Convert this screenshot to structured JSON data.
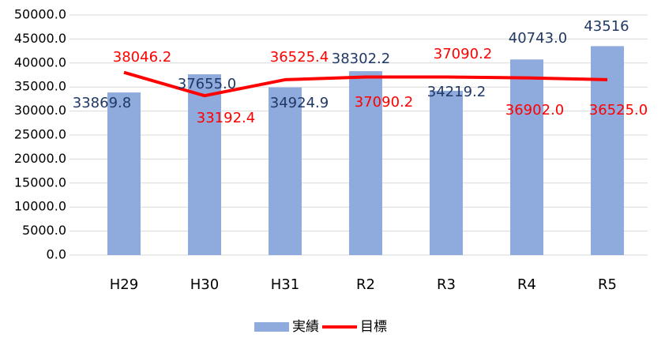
{
  "chart_data": {
    "type": "combo",
    "categories": [
      "H29",
      "H30",
      "H31",
      "R2",
      "R3",
      "R4",
      "R5"
    ],
    "series": [
      {
        "name": "実績",
        "type": "bar",
        "color": "#8faadc",
        "label_color": "#203864",
        "values": [
          33869.8,
          37655.0,
          34924.9,
          38302.2,
          34219.2,
          40743.0,
          43516
        ],
        "value_labels": [
          "33869.8",
          "37655.0",
          "34924.9",
          "38302.2",
          "34219.2",
          "40743.0",
          "43516"
        ]
      },
      {
        "name": "目標",
        "type": "line",
        "color": "#ff0000",
        "label_color": "#ff0000",
        "values": [
          38046.2,
          33192.4,
          36525.4,
          37090.2,
          37090.2,
          36902.0,
          36525.0
        ],
        "value_labels": [
          "38046.2",
          "33192.4",
          "36525.4",
          "37090.2",
          "37090.2",
          "36902.0",
          "36525.0"
        ]
      }
    ],
    "ylim": [
      0,
      50000
    ],
    "yticks": [
      {
        "value": 0,
        "label": "0.0"
      },
      {
        "value": 5000,
        "label": "5000.0"
      },
      {
        "value": 10000,
        "label": "10000.0"
      },
      {
        "value": 15000,
        "label": "15000.0"
      },
      {
        "value": 20000,
        "label": "20000.0"
      },
      {
        "value": 25000,
        "label": "25000.0"
      },
      {
        "value": 30000,
        "label": "30000.0"
      },
      {
        "value": 35000,
        "label": "35000.0"
      },
      {
        "value": 40000,
        "label": "40000.0"
      },
      {
        "value": 45000,
        "label": "45000.0"
      },
      {
        "value": 50000,
        "label": "50000.0"
      }
    ],
    "grid": true,
    "legend": "bottom"
  }
}
